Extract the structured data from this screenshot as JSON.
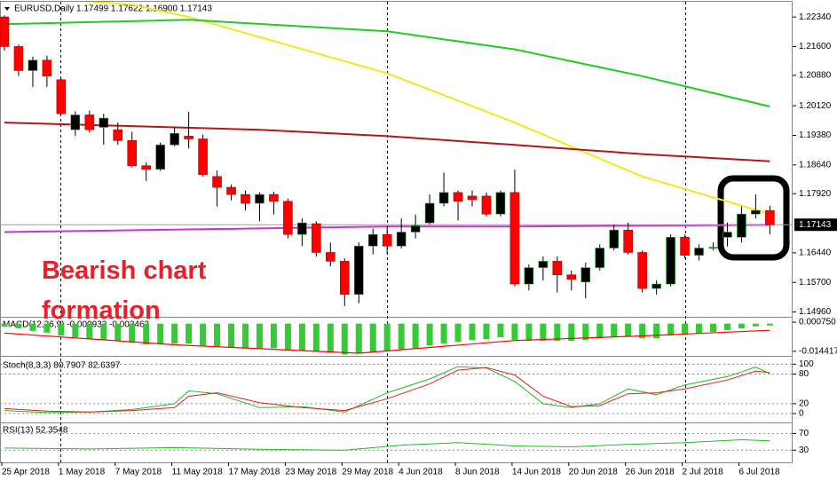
{
  "chart_data": [
    {
      "type": "candlestick",
      "title": "EURUSD,Daily  1.17499 1.17622 1.16900 1.17143",
      "annotation": "Bearish chart formation",
      "categories": [
        "25 Apr 2018",
        null,
        null,
        null,
        "1 May 2018",
        null,
        null,
        null,
        "7 May 2018",
        null,
        null,
        null,
        "11 May 2018",
        null,
        null,
        null,
        "17 May 2018",
        null,
        null,
        null,
        "23 May 2018",
        null,
        null,
        null,
        "29 May 2018",
        null,
        null,
        null,
        "4 Jun 2018",
        null,
        null,
        null,
        "8 Jun 2018",
        null,
        null,
        null,
        "14 Jun 2018",
        null,
        null,
        null,
        "20 Jun 2018",
        null,
        null,
        null,
        "26 Jun 2018",
        null,
        null,
        null,
        "2 Jul 2018",
        null,
        null,
        null,
        "6 Jul 2018",
        null,
        null
      ],
      "open": [
        1.2234,
        1.216,
        1.21,
        1.2126,
        1.2077,
        1.1952,
        1.1989,
        1.1958,
        1.1952,
        1.1925,
        1.1862,
        1.1853,
        1.1914,
        1.1936,
        1.1929,
        1.1835,
        1.1808,
        1.179,
        1.1768,
        1.179,
        1.1773,
        1.169,
        1.1717,
        1.1645,
        1.1623,
        1.154,
        1.1661,
        1.169,
        1.1661,
        1.1696,
        1.1719,
        1.1768,
        1.1795,
        1.1786,
        1.1786,
        1.1741,
        1.1795,
        1.1566,
        1.1607,
        1.1623,
        1.1589,
        1.1571,
        1.1607,
        1.1656,
        1.1701,
        1.1645,
        1.1555,
        1.1566,
        1.1683,
        1.1638,
        1.1656,
        1.1683,
        1.1683,
        1.1741,
        1.17499
      ],
      "high": [
        1.2238,
        1.2165,
        1.2135,
        1.2137,
        1.208,
        1.1998,
        1.2,
        1.1992,
        1.197,
        1.1947,
        1.187,
        1.192,
        1.1958,
        1.1997,
        1.194,
        1.185,
        1.1815,
        1.18,
        1.1795,
        1.1797,
        1.178,
        1.173,
        1.1723,
        1.167,
        1.163,
        1.167,
        1.1705,
        1.171,
        1.173,
        1.174,
        1.179,
        1.1845,
        1.18,
        1.18,
        1.1795,
        1.18,
        1.1852,
        1.1615,
        1.1635,
        1.1635,
        1.16,
        1.162,
        1.1665,
        1.1715,
        1.172,
        1.165,
        1.1575,
        1.169,
        1.169,
        1.1665,
        1.167,
        1.172,
        1.176,
        1.179,
        1.17622
      ],
      "low": [
        1.215,
        1.2086,
        1.2059,
        1.2059,
        1.199,
        1.1936,
        1.1945,
        1.1914,
        1.1914,
        1.1858,
        1.1824,
        1.1849,
        1.191,
        1.1905,
        1.1835,
        1.176,
        1.1775,
        1.175,
        1.1723,
        1.174,
        1.168,
        1.1661,
        1.1635,
        1.161,
        1.1511,
        1.1518,
        1.164,
        1.164,
        1.1655,
        1.168,
        1.1715,
        1.176,
        1.1725,
        1.176,
        1.1735,
        1.1735,
        1.156,
        1.155,
        1.1575,
        1.1545,
        1.155,
        1.153,
        1.16,
        1.165,
        1.164,
        1.1545,
        1.154,
        1.156,
        1.163,
        1.1625,
        1.165,
        1.166,
        1.167,
        1.173,
        1.169
      ],
      "close": [
        1.216,
        1.21,
        1.2126,
        1.2086,
        1.1992,
        1.1989,
        1.1952,
        1.1981,
        1.1925,
        1.1862,
        1.1853,
        1.1914,
        1.1943,
        1.1929,
        1.184,
        1.1808,
        1.179,
        1.1768,
        1.179,
        1.1773,
        1.169,
        1.1719,
        1.1645,
        1.1623,
        1.154,
        1.1661,
        1.169,
        1.1661,
        1.1696,
        1.1712,
        1.1768,
        1.1795,
        1.1773,
        1.1777,
        1.1741,
        1.1795,
        1.1566,
        1.1607,
        1.1623,
        1.1589,
        1.1578,
        1.1607,
        1.1656,
        1.1701,
        1.1645,
        1.1555,
        1.1566,
        1.1683,
        1.1638,
        1.1656,
        1.1658,
        1.1696,
        1.1741,
        1.175,
        1.17143
      ],
      "up_color": "#000000",
      "down_color": "#ff0000",
      "overlays": [
        {
          "color": "#f5e61a",
          "x": [
            0,
            9,
            13,
            27,
            36,
            45,
            54
          ],
          "values": [
            1.229,
            1.2265,
            1.2234,
            1.2093,
            1.197,
            1.1835,
            1.1741
          ]
        },
        {
          "color": "#22cc22",
          "x": [
            0,
            13,
            27,
            36,
            45,
            54
          ],
          "values": [
            1.2216,
            1.2227,
            1.2198,
            1.2153,
            1.2086,
            1.201
          ]
        },
        {
          "color": "#b01818",
          "x": [
            0,
            18,
            27,
            36,
            45,
            54
          ],
          "values": [
            1.197,
            1.1952,
            1.1936,
            1.1914,
            1.1891,
            1.1873
          ]
        },
        {
          "color": "#cc33cc",
          "x": [
            0,
            18,
            27,
            36,
            54
          ],
          "values": [
            1.1696,
            1.1705,
            1.171,
            1.171,
            1.1714
          ]
        }
      ],
      "ylim": [
        1.1484,
        1.2272
      ],
      "yticks": [
        {
          "value": 1.2234,
          "label": "1.22340"
        },
        {
          "value": 1.216,
          "label": "1.21600"
        },
        {
          "value": 1.2088,
          "label": "1.20880"
        },
        {
          "value": 1.2012,
          "label": "1.20120"
        },
        {
          "value": 1.1938,
          "label": "1.19380"
        },
        {
          "value": 1.1864,
          "label": "1.18640"
        },
        {
          "value": 1.1792,
          "label": "1.17920"
        },
        {
          "value": 1.1644,
          "label": "1.16440"
        },
        {
          "value": 1.157,
          "label": "1.15700"
        },
        {
          "value": 1.1496,
          "label": "1.14960"
        }
      ]
    },
    {
      "type": "bar",
      "title": "MACD(12,26,9) -0.000933 -0.003463",
      "color": "#33cc33",
      "values": [
        -0.0014,
        -0.0024,
        -0.0038,
        -0.0047,
        -0.0062,
        -0.0071,
        -0.0081,
        -0.0085,
        -0.009,
        -0.01,
        -0.0109,
        -0.0109,
        -0.0104,
        -0.0104,
        -0.0114,
        -0.0119,
        -0.0123,
        -0.0128,
        -0.0128,
        -0.0128,
        -0.0137,
        -0.0142,
        -0.0147,
        -0.0152,
        -0.0161,
        -0.0152,
        -0.0147,
        -0.0142,
        -0.0133,
        -0.0128,
        -0.0114,
        -0.0104,
        -0.0095,
        -0.0085,
        -0.0081,
        -0.0071,
        -0.0085,
        -0.009,
        -0.009,
        -0.009,
        -0.009,
        -0.0085,
        -0.0076,
        -0.0066,
        -0.0066,
        -0.0076,
        -0.0076,
        -0.0062,
        -0.0057,
        -0.0052,
        -0.0043,
        -0.0033,
        -0.0024,
        -0.0014,
        -0.000933
      ],
      "signal": {
        "color": "#ff0000",
        "x": [
          0,
          12,
          25,
          36,
          45,
          54
        ],
        "values": [
          -0.0049,
          -0.011,
          -0.0154,
          -0.0088,
          -0.0064,
          -0.003463
        ]
      },
      "ylim": [
        -0.0168,
        0.0031
      ],
      "yticks": [
        {
          "value": 0.00075,
          "label": "0.000750"
        },
        -0.014417
      ]
    },
    {
      "type": "line",
      "title": "Stoch(8,3,3) 80.7907 82.6397",
      "grid": true,
      "series": [
        {
          "color": "#22bb22",
          "x": [
            0,
            3,
            6,
            9,
            12,
            13,
            15,
            18,
            21,
            24,
            27,
            30,
            32,
            34,
            36,
            38,
            40,
            42,
            44,
            46,
            48,
            51,
            53,
            54
          ],
          "values": [
            6,
            2,
            3,
            8,
            20,
            46,
            40,
            12,
            14,
            3,
            42,
            70,
            95,
            92,
            65,
            20,
            12,
            20,
            50,
            38,
            58,
            75,
            94,
            80.7907
          ]
        },
        {
          "color": "#dd2222",
          "x": [
            0,
            3,
            6,
            9,
            12,
            13,
            15,
            18,
            21,
            24,
            27,
            30,
            32,
            34,
            36,
            38,
            40,
            42,
            44,
            46,
            48,
            51,
            53,
            54
          ],
          "values": [
            10,
            5,
            3,
            6,
            12,
            35,
            42,
            22,
            12,
            6,
            30,
            60,
            88,
            93,
            78,
            35,
            14,
            16,
            40,
            42,
            50,
            68,
            86,
            82.6397
          ]
        }
      ],
      "ylim": [
        -18,
        115
      ],
      "yticks": [
        100,
        80,
        20,
        0
      ]
    },
    {
      "type": "line",
      "title": "RSI(13) 52.3548",
      "grid": true,
      "series": [
        {
          "color": "#22bb22",
          "x": [
            0,
            6,
            12,
            18,
            24,
            28,
            32,
            36,
            40,
            44,
            48,
            52,
            54
          ],
          "values": [
            35,
            33,
            36,
            32,
            30,
            42,
            48,
            40,
            38,
            44,
            48,
            55,
            52.3548
          ]
        }
      ],
      "ylim": [
        1,
        94
      ],
      "yticks": [
        70,
        30
      ]
    }
  ]
}
